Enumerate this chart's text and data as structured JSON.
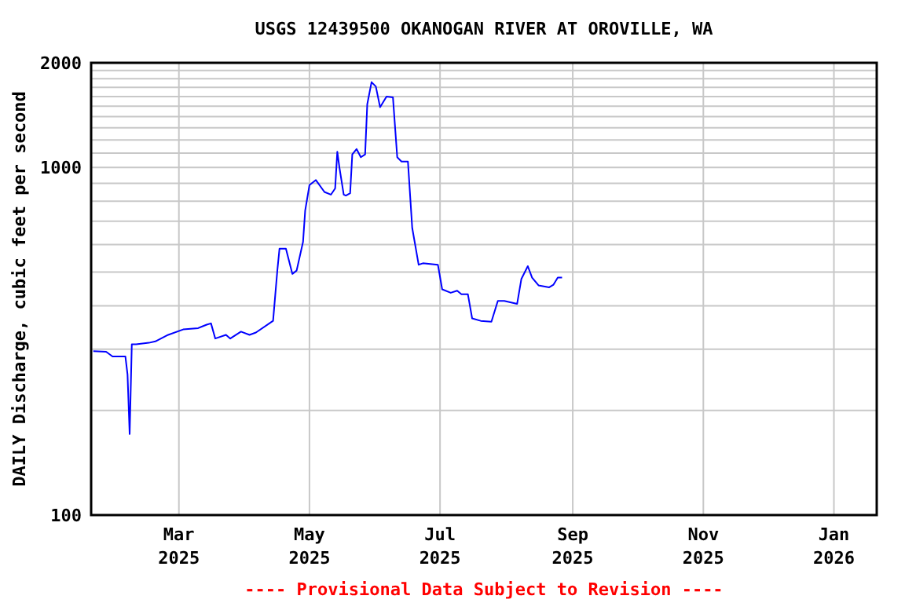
{
  "chart_data": {
    "type": "line",
    "title": "USGS 12439500 OKANOGAN RIVER AT OROVILLE, WA",
    "ylabel": "DAILY Discharge, cubic feet per second",
    "annotations": [
      "---- Provisional Data Subject to Revision ----"
    ],
    "log": true,
    "grid": true,
    "marker": "none",
    "line_style": "solid",
    "xlim": [
      "2025-01-19",
      "2026-01-21"
    ],
    "xticks": [
      {
        "value": "2025-03-01",
        "label": "Mar\n2025"
      },
      {
        "value": "2025-05-01",
        "label": "May\n2025"
      },
      {
        "value": "2025-07-01",
        "label": "Jul\n2025"
      },
      {
        "value": "2025-09-01",
        "label": "Sep\n2025"
      },
      {
        "value": "2025-11-01",
        "label": "Nov\n2025"
      },
      {
        "value": "2026-01-01",
        "label": "Jan\n2026"
      }
    ],
    "ylim": [
      100,
      2000
    ],
    "yticks": [
      100,
      {
        "value": 200,
        "label": null
      },
      {
        "value": 300,
        "label": null
      },
      {
        "value": 400,
        "label": null
      },
      {
        "value": 500,
        "label": null
      },
      {
        "value": 600,
        "label": null
      },
      {
        "value": 700,
        "label": null
      },
      {
        "value": 800,
        "label": null
      },
      {
        "value": 900,
        "label": null
      },
      1000,
      {
        "value": 1100,
        "label": null
      },
      {
        "value": 1200,
        "label": null
      },
      {
        "value": 1300,
        "label": null
      },
      {
        "value": 1400,
        "label": null
      },
      {
        "value": 1500,
        "label": null
      },
      {
        "value": 1600,
        "label": null
      },
      {
        "value": 1700,
        "label": null
      },
      {
        "value": 1800,
        "label": null
      },
      {
        "value": 1900,
        "label": null
      },
      2000
    ],
    "series": [
      {
        "color": "#0000ff",
        "x": [
          "2025-01-20",
          "2025-01-26",
          "2025-01-29",
          "2025-02-04",
          "2025-02-05",
          "2025-02-06",
          "2025-02-07",
          "2025-02-09",
          "2025-02-15",
          "2025-02-18",
          "2025-02-24",
          "2025-03-03",
          "2025-03-10",
          "2025-03-14",
          "2025-03-16",
          "2025-03-18",
          "2025-03-23",
          "2025-03-25",
          "2025-03-30",
          "2025-04-03",
          "2025-04-06",
          "2025-04-14",
          "2025-04-15",
          "2025-04-16",
          "2025-04-17",
          "2025-04-20",
          "2025-04-23",
          "2025-04-25",
          "2025-04-28",
          "2025-04-29",
          "2025-05-01",
          "2025-05-04",
          "2025-05-08",
          "2025-05-11",
          "2025-05-13",
          "2025-05-14",
          "2025-05-15",
          "2025-05-17",
          "2025-05-18",
          "2025-05-20",
          "2025-05-21",
          "2025-05-23",
          "2025-05-25",
          "2025-05-27",
          "2025-05-28",
          "2025-05-30",
          "2025-06-01",
          "2025-06-03",
          "2025-06-06",
          "2025-06-09",
          "2025-06-11",
          "2025-06-13",
          "2025-06-16",
          "2025-06-18",
          "2025-06-21",
          "2025-06-23",
          "2025-06-30",
          "2025-07-02",
          "2025-07-06",
          "2025-07-09",
          "2025-07-11",
          "2025-07-14",
          "2025-07-16",
          "2025-07-20",
          "2025-07-25",
          "2025-07-28",
          "2025-07-31",
          "2025-08-06",
          "2025-08-08",
          "2025-08-11",
          "2025-08-13",
          "2025-08-16",
          "2025-08-21",
          "2025-08-23",
          "2025-08-25",
          "2025-08-27"
        ],
        "values": [
          296,
          295,
          286,
          286,
          254,
          171,
          310,
          310,
          313,
          316,
          330,
          342,
          345,
          353,
          356,
          322,
          330,
          322,
          337,
          330,
          335,
          362,
          428,
          506,
          584,
          584,
          494,
          505,
          611,
          752,
          890,
          920,
          850,
          835,
          870,
          1110,
          1000,
          835,
          830,
          843,
          1090,
          1130,
          1070,
          1090,
          1520,
          1760,
          1710,
          1490,
          1600,
          1590,
          1070,
          1040,
          1040,
          670,
          525,
          530,
          525,
          446,
          436,
          442,
          432,
          432,
          368,
          362,
          360,
          413,
          413,
          405,
          478,
          520,
          482,
          458,
          452,
          460,
          482,
          482
        ]
      }
    ]
  }
}
